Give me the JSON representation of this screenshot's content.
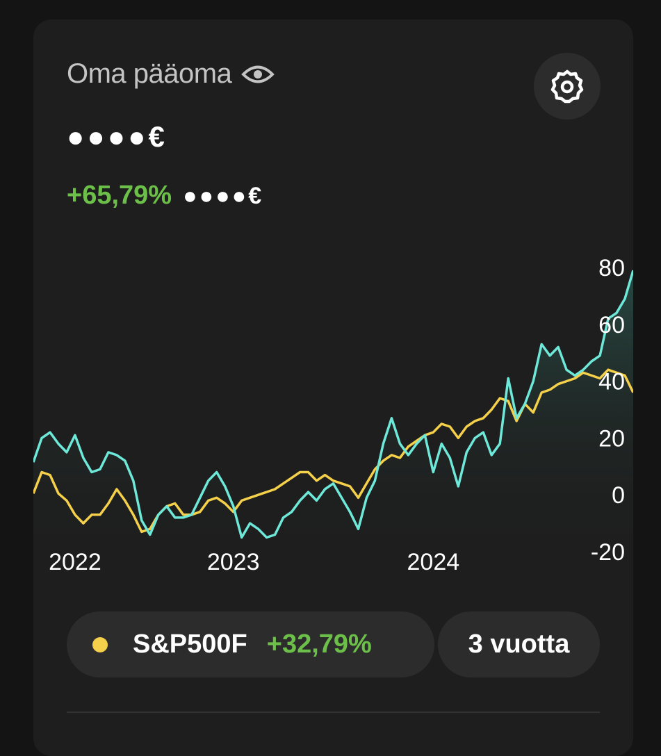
{
  "header": {
    "title": "Oma pääoma",
    "amount": "●●●●€",
    "change": "+65,79%",
    "change_amount": "●●●●€"
  },
  "chart_data": {
    "type": "line",
    "categories": [
      null,
      null,
      null,
      null,
      null,
      "2022",
      null,
      null,
      null,
      null,
      null,
      null,
      null,
      null,
      null,
      null,
      null,
      null,
      null,
      null,
      null,
      null,
      null,
      null,
      "2023",
      null,
      null,
      null,
      null,
      null,
      null,
      null,
      null,
      null,
      null,
      null,
      null,
      null,
      null,
      null,
      null,
      null,
      null,
      null,
      null,
      null,
      null,
      null,
      "2024",
      null,
      null,
      null,
      null,
      null,
      null,
      null,
      null,
      null,
      null,
      null,
      null,
      null,
      null,
      null,
      null,
      null,
      null,
      null,
      null,
      null,
      null,
      null,
      null
    ],
    "series": [
      {
        "color": "#6ee8d8",
        "values": [
          11.5,
          20,
          22,
          18,
          15,
          21,
          13,
          8,
          9,
          15,
          14,
          12,
          5,
          -9,
          -14,
          -7,
          -4,
          -8,
          -8,
          -7,
          -1,
          5,
          8,
          3,
          -4,
          -15,
          -10,
          -12,
          -15,
          -14,
          -8,
          -6,
          -2,
          1,
          -2,
          2,
          4,
          -1,
          -6,
          -12,
          -1,
          5,
          18,
          27,
          18,
          14,
          18,
          21,
          8,
          18,
          13,
          3,
          15,
          20,
          22,
          14,
          18,
          41,
          27,
          32,
          40,
          53,
          49,
          52,
          44,
          42,
          44,
          47,
          49,
          62,
          64,
          69,
          79
        ]
      },
      {
        "name": "S&P500F",
        "color": "#f5d04a",
        "values": [
          0.5,
          8,
          7,
          0.5,
          -2,
          -7,
          -10,
          -7,
          -7,
          -3,
          2,
          -2,
          -7,
          -13,
          -12,
          -7,
          -4,
          -3,
          -7,
          -7,
          -6,
          -2,
          -1,
          -3,
          -6,
          -2,
          -1,
          0,
          1,
          2,
          4,
          6,
          8,
          8,
          5,
          7,
          5,
          4,
          3,
          -1,
          4,
          9,
          12,
          14,
          13,
          17,
          19,
          21,
          22,
          25,
          24,
          20,
          24,
          26,
          27,
          30,
          34,
          33,
          26,
          32,
          29,
          36,
          37,
          39,
          40,
          41,
          43,
          42,
          41,
          44,
          43,
          42,
          36
        ],
        "change": "+32,79%"
      }
    ],
    "ylim": [
      -20,
      80
    ],
    "yticks": [
      80,
      60,
      40,
      20,
      0,
      -20
    ],
    "grid": false,
    "period": "3 vuotta"
  }
}
